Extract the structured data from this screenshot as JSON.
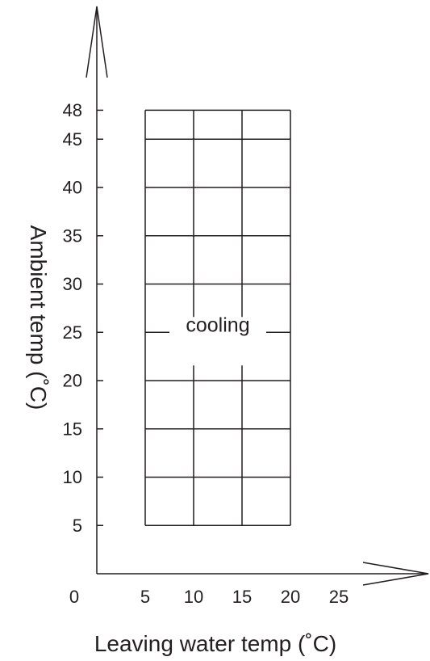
{
  "chart_data": {
    "type": "operating-envelope",
    "xlabel": "Leaving water temp (˚C)",
    "ylabel": "Ambient temp (˚C)",
    "origin_label": "0",
    "x_ticks": [
      5,
      10,
      15,
      20,
      25
    ],
    "y_ticks": [
      5,
      10,
      15,
      20,
      25,
      30,
      35,
      40,
      45,
      48
    ],
    "xlim": [
      0,
      30
    ],
    "ylim": [
      0,
      52
    ],
    "grid": true,
    "regions": [
      {
        "name": "cooling",
        "x_range": [
          5,
          20
        ],
        "y_range": [
          5,
          48
        ]
      }
    ]
  }
}
